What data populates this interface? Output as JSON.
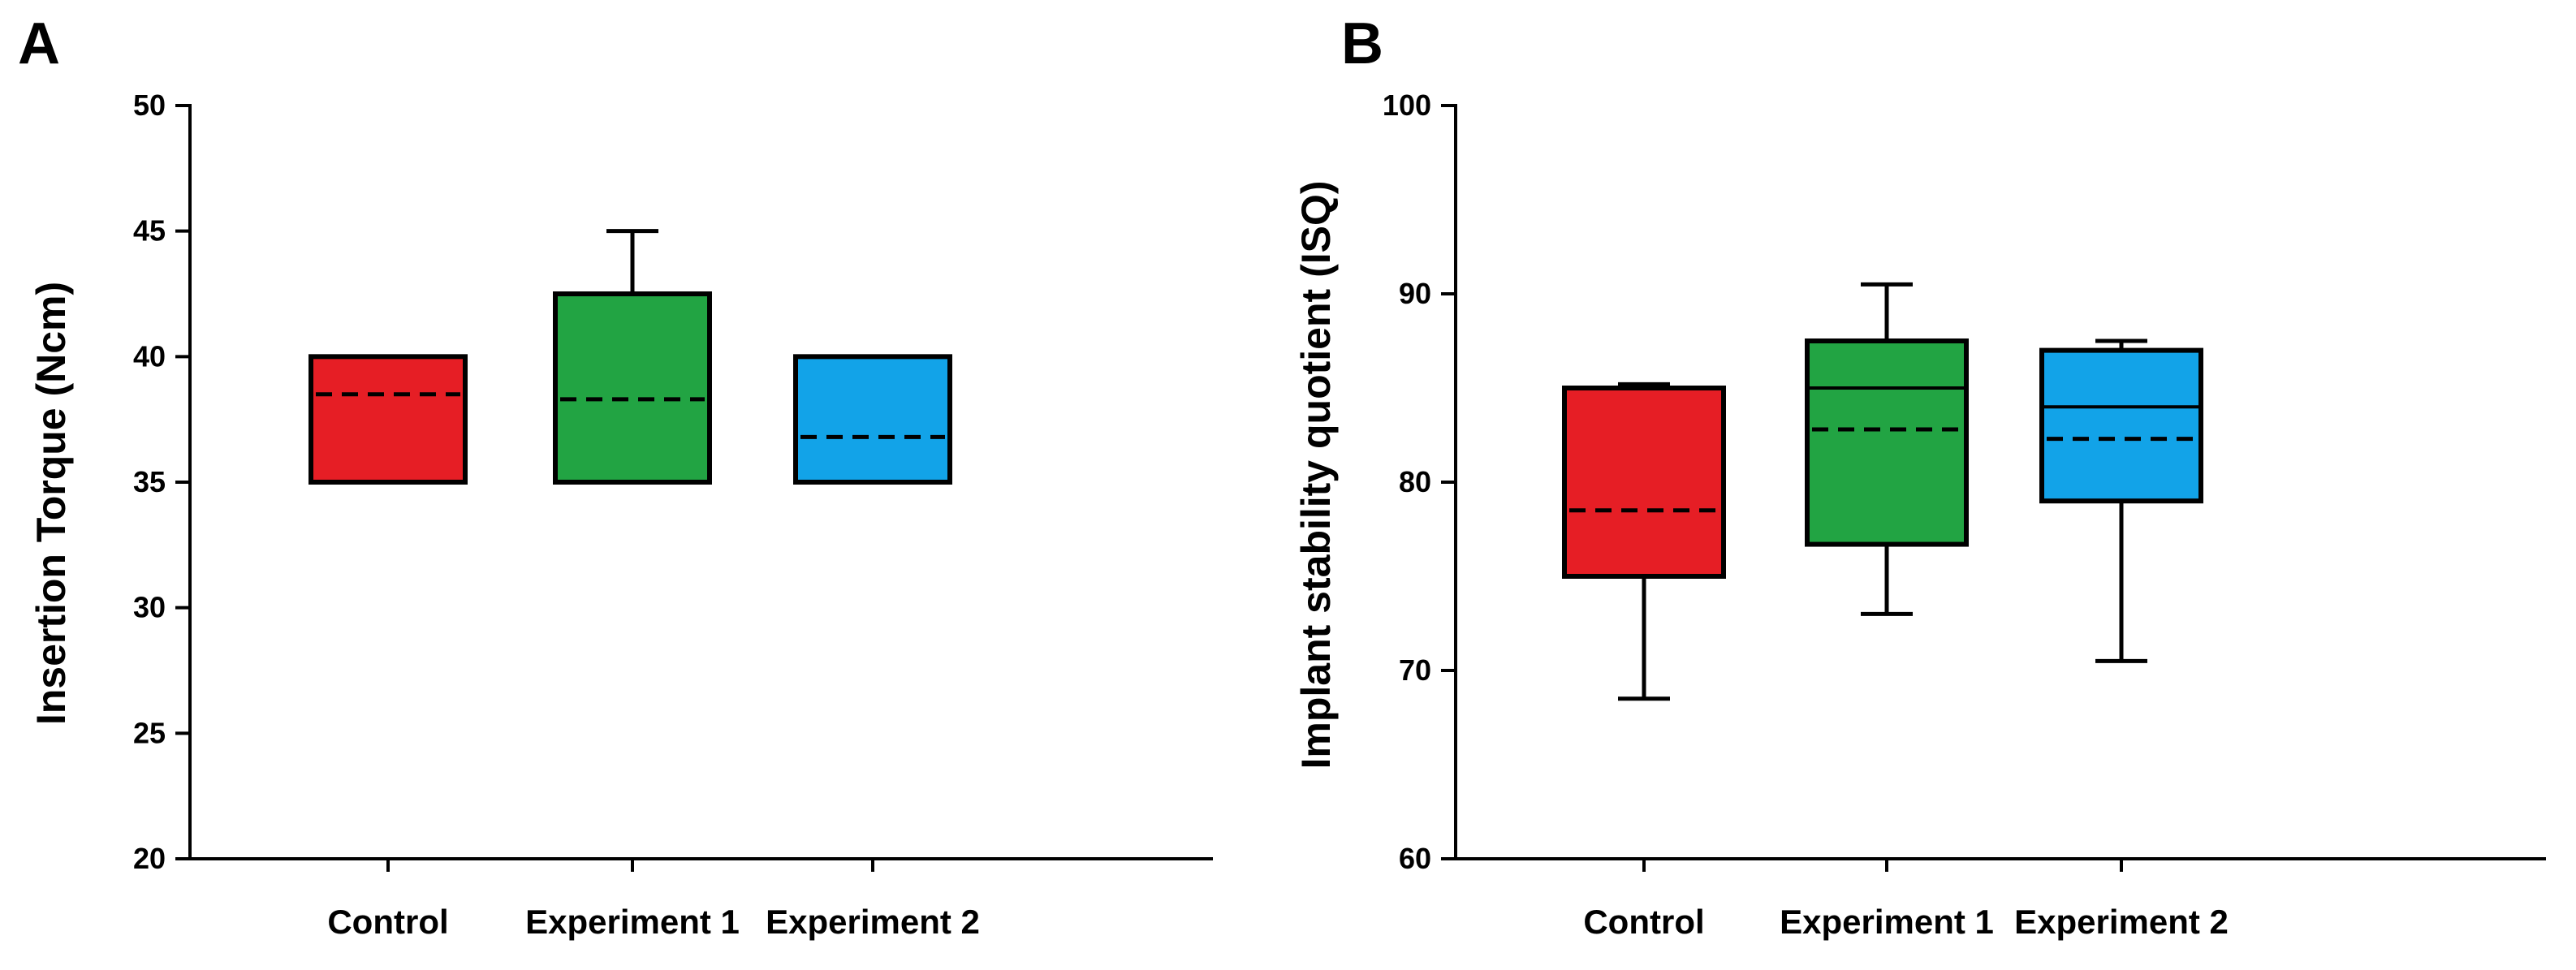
{
  "chart_data": [
    {
      "type": "boxplot",
      "panel_label": "A",
      "ylabel": "Insertion Torque (Ncm)",
      "xlabel": "",
      "ylim": [
        20,
        50
      ],
      "yticks": [
        20,
        25,
        30,
        35,
        40,
        45,
        50
      ],
      "categories": [
        "Control",
        "Experiment 1",
        "Experiment 2"
      ],
      "colors": [
        "#e61e25",
        "#22a443",
        "#12a3e8"
      ],
      "boxes": [
        {
          "name": "Control",
          "q1": 35,
          "q3": 40,
          "whisker_low": null,
          "whisker_high": null,
          "median": null,
          "mean": 38.5
        },
        {
          "name": "Experiment 1",
          "q1": 35,
          "q3": 42.5,
          "whisker_low": null,
          "whisker_high": 45,
          "median": null,
          "mean": 38.3
        },
        {
          "name": "Experiment 2",
          "q1": 35,
          "q3": 40,
          "whisker_low": null,
          "whisker_high": null,
          "median": null,
          "mean": 36.8
        }
      ]
    },
    {
      "type": "boxplot",
      "panel_label": "B",
      "ylabel": "Implant stability quotient (ISQ)",
      "xlabel": "",
      "ylim": [
        60,
        100
      ],
      "yticks": [
        60,
        70,
        80,
        90,
        100
      ],
      "categories": [
        "Control",
        "Experiment 1",
        "Experiment 2"
      ],
      "colors": [
        "#e61e25",
        "#22a443",
        "#12a3e8"
      ],
      "boxes": [
        {
          "name": "Control",
          "q1": 75,
          "q3": 85,
          "whisker_low": 68.5,
          "whisker_high": 85.2,
          "median": null,
          "mean": 78.5
        },
        {
          "name": "Experiment 1",
          "q1": 76.7,
          "q3": 87.5,
          "whisker_low": 73,
          "whisker_high": 90.5,
          "median": 85,
          "mean": 82.8
        },
        {
          "name": "Experiment 2",
          "q1": 79,
          "q3": 87,
          "whisker_low": 70.5,
          "whisker_high": 87.5,
          "median": 84,
          "mean": 82.3
        }
      ]
    }
  ]
}
